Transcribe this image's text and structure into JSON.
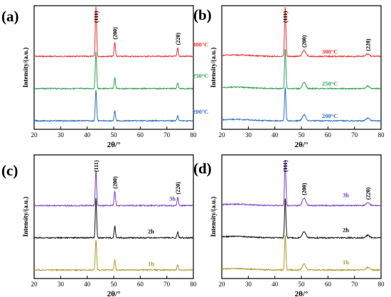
{
  "chart_data": [
    {
      "type": "line",
      "panel_label": "(a)",
      "xlabel": "2θ/°",
      "ylabel": "Intensity/(a.u.)",
      "xlim": [
        20,
        80
      ],
      "xticks": [
        20,
        30,
        40,
        50,
        60,
        70,
        80
      ],
      "peak_labels": [
        {
          "text": "(111)",
          "x": 43.3
        },
        {
          "text": "(200)",
          "x": 50.4
        },
        {
          "text": "(220)",
          "x": 74.1
        }
      ],
      "series": [
        {
          "name": "300°C",
          "color": "#e8302a",
          "peaks": [
            {
              "x": 43.3,
              "h": 1.0
            },
            {
              "x": 50.4,
              "h": 0.28
            },
            {
              "x": 74.1,
              "h": 0.17
            }
          ]
        },
        {
          "name": "250°C",
          "color": "#2ea05a",
          "peaks": [
            {
              "x": 43.3,
              "h": 0.75
            },
            {
              "x": 50.4,
              "h": 0.22
            },
            {
              "x": 74.1,
              "h": 0.12
            }
          ]
        },
        {
          "name": "200°C",
          "color": "#2c6fca",
          "peaks": [
            {
              "x": 43.3,
              "h": 0.62
            },
            {
              "x": 50.4,
              "h": 0.2
            },
            {
              "x": 74.1,
              "h": 0.1
            }
          ]
        }
      ]
    },
    {
      "type": "line",
      "panel_label": "(b)",
      "xlabel": "2θ/°",
      "ylabel": "Intensity/(a.u.)",
      "xlim": [
        20,
        80
      ],
      "xticks": [
        20,
        30,
        40,
        50,
        60,
        70,
        80
      ],
      "peak_labels": [
        {
          "text": "(111)",
          "x": 43.9
        },
        {
          "text": "(200)",
          "x": 51.0
        },
        {
          "text": "(220)",
          "x": 75.0
        }
      ],
      "series": [
        {
          "name": "300°C",
          "color": "#e8302a",
          "peaks": [
            {
              "x": 43.9,
              "h": 1.0
            },
            {
              "x": 51.0,
              "h": 0.12
            },
            {
              "x": 75.0,
              "h": 0.05
            }
          ]
        },
        {
          "name": "250°C",
          "color": "#2ea05a",
          "peaks": [
            {
              "x": 43.9,
              "h": 0.8
            },
            {
              "x": 51.0,
              "h": 0.12
            },
            {
              "x": 75.0,
              "h": 0.05
            }
          ]
        },
        {
          "name": "200°C",
          "color": "#2c6fca",
          "peaks": [
            {
              "x": 43.9,
              "h": 0.68
            },
            {
              "x": 51.0,
              "h": 0.12
            },
            {
              "x": 75.0,
              "h": 0.05
            }
          ]
        }
      ]
    },
    {
      "type": "line",
      "panel_label": "(c)",
      "xlabel": "2θ/°",
      "ylabel": "Intensity/(a.u.)",
      "xlim": [
        20,
        80
      ],
      "xticks": [
        20,
        30,
        40,
        50,
        60,
        70,
        80
      ],
      "peak_labels": [
        {
          "text": "(111)",
          "x": 43.3
        },
        {
          "text": "(200)",
          "x": 50.4
        },
        {
          "text": "(220)",
          "x": 74.1
        }
      ],
      "series": [
        {
          "name": "3h",
          "color": "#7a3fc6",
          "peaks": [
            {
              "x": 43.3,
              "h": 0.75
            },
            {
              "x": 50.4,
              "h": 0.3
            },
            {
              "x": 74.1,
              "h": 0.18
            }
          ]
        },
        {
          "name": "2h",
          "color": "#111111",
          "peaks": [
            {
              "x": 43.3,
              "h": 0.85
            },
            {
              "x": 50.4,
              "h": 0.25
            },
            {
              "x": 74.1,
              "h": 0.12
            }
          ]
        },
        {
          "name": "1h",
          "color": "#b09a2a",
          "peaks": [
            {
              "x": 43.3,
              "h": 0.65
            },
            {
              "x": 50.4,
              "h": 0.22
            },
            {
              "x": 74.1,
              "h": 0.12
            }
          ]
        }
      ]
    },
    {
      "type": "line",
      "panel_label": "(d)",
      "xlabel": "2θ/°",
      "ylabel": "Intensity/(a.u.)",
      "xlim": [
        20,
        80
      ],
      "xticks": [
        20,
        30,
        40,
        50,
        60,
        70,
        80
      ],
      "peak_labels": [
        {
          "text": "(111)",
          "x": 43.9
        },
        {
          "text": "(200)",
          "x": 51.0
        },
        {
          "text": "(220)",
          "x": 75.0
        }
      ],
      "series": [
        {
          "name": "3h",
          "color": "#7a3fc6",
          "peaks": [
            {
              "x": 43.9,
              "h": 0.92
            },
            {
              "x": 51.0,
              "h": 0.15
            },
            {
              "x": 75.0,
              "h": 0.06
            }
          ]
        },
        {
          "name": "2h",
          "color": "#111111",
          "peaks": [
            {
              "x": 43.9,
              "h": 0.8
            },
            {
              "x": 51.0,
              "h": 0.12
            },
            {
              "x": 75.0,
              "h": 0.05
            }
          ]
        },
        {
          "name": "1h",
          "color": "#b09a2a",
          "peaks": [
            {
              "x": 43.9,
              "h": 0.7
            },
            {
              "x": 51.0,
              "h": 0.12
            },
            {
              "x": 75.0,
              "h": 0.05
            }
          ]
        }
      ]
    }
  ]
}
